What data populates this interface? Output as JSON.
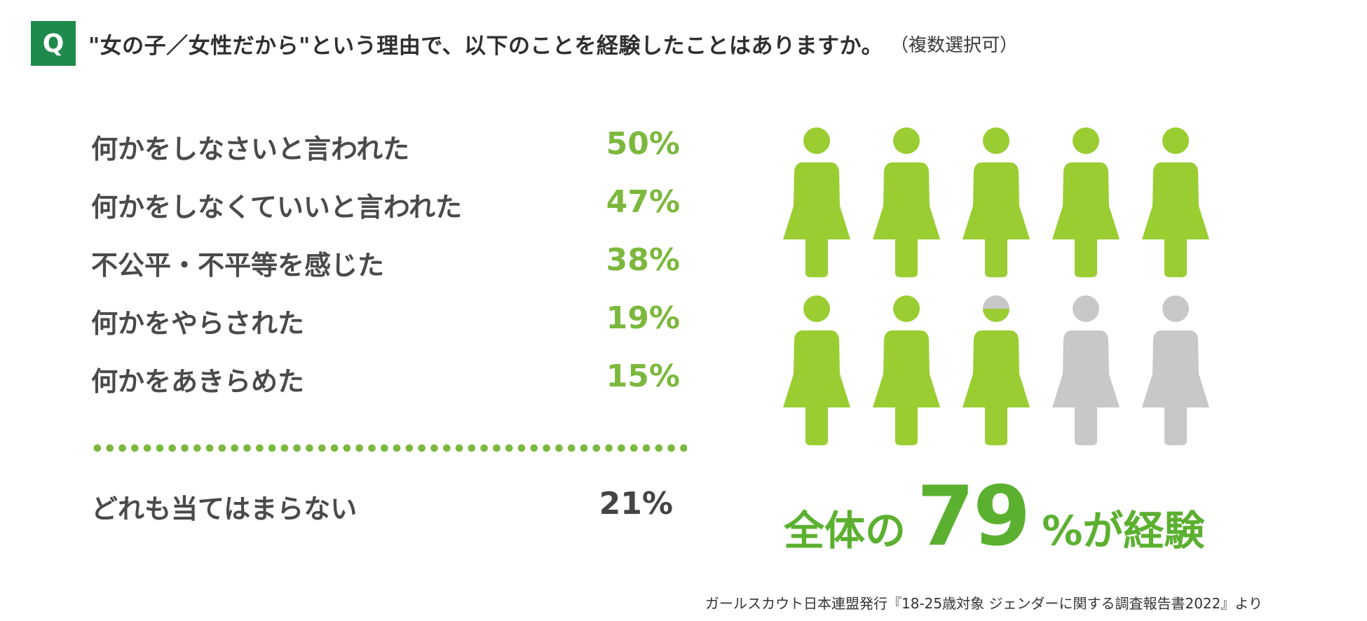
{
  "header": {
    "badge": "Q",
    "question": "\"女の子／女性だから\"という理由で、以下のことを経験したことはありますか。",
    "note": "（複数選択可）"
  },
  "chart_data": {
    "type": "table",
    "rows": [
      {
        "label": "何かをしなさいと言われた",
        "value": "50%"
      },
      {
        "label": "何かをしなくていいと言われた",
        "value": "47%"
      },
      {
        "label": "不公平・不平等を感じた",
        "value": "38%"
      },
      {
        "label": "何かをやらされた",
        "value": "19%"
      },
      {
        "label": "何かをあきらめた",
        "value": "15%"
      }
    ],
    "none": {
      "label": "どれも当てはまらない",
      "value": "21%"
    },
    "experienced_percent": 79,
    "pictogram": {
      "total": 10,
      "filled": 7.9
    }
  },
  "summary": {
    "pre": "全体の",
    "value": "79",
    "post": "%が経験"
  },
  "source": "ガールスカウト日本連盟発行『18-25歳対象 ジェンダーに関する調査報告書2022』より",
  "colors": {
    "accent": "#7cb83d",
    "figure_on": "#9acd32",
    "figure_off": "#c8c8c8",
    "badge": "#1e8a4c",
    "summary": "#5bb030"
  }
}
